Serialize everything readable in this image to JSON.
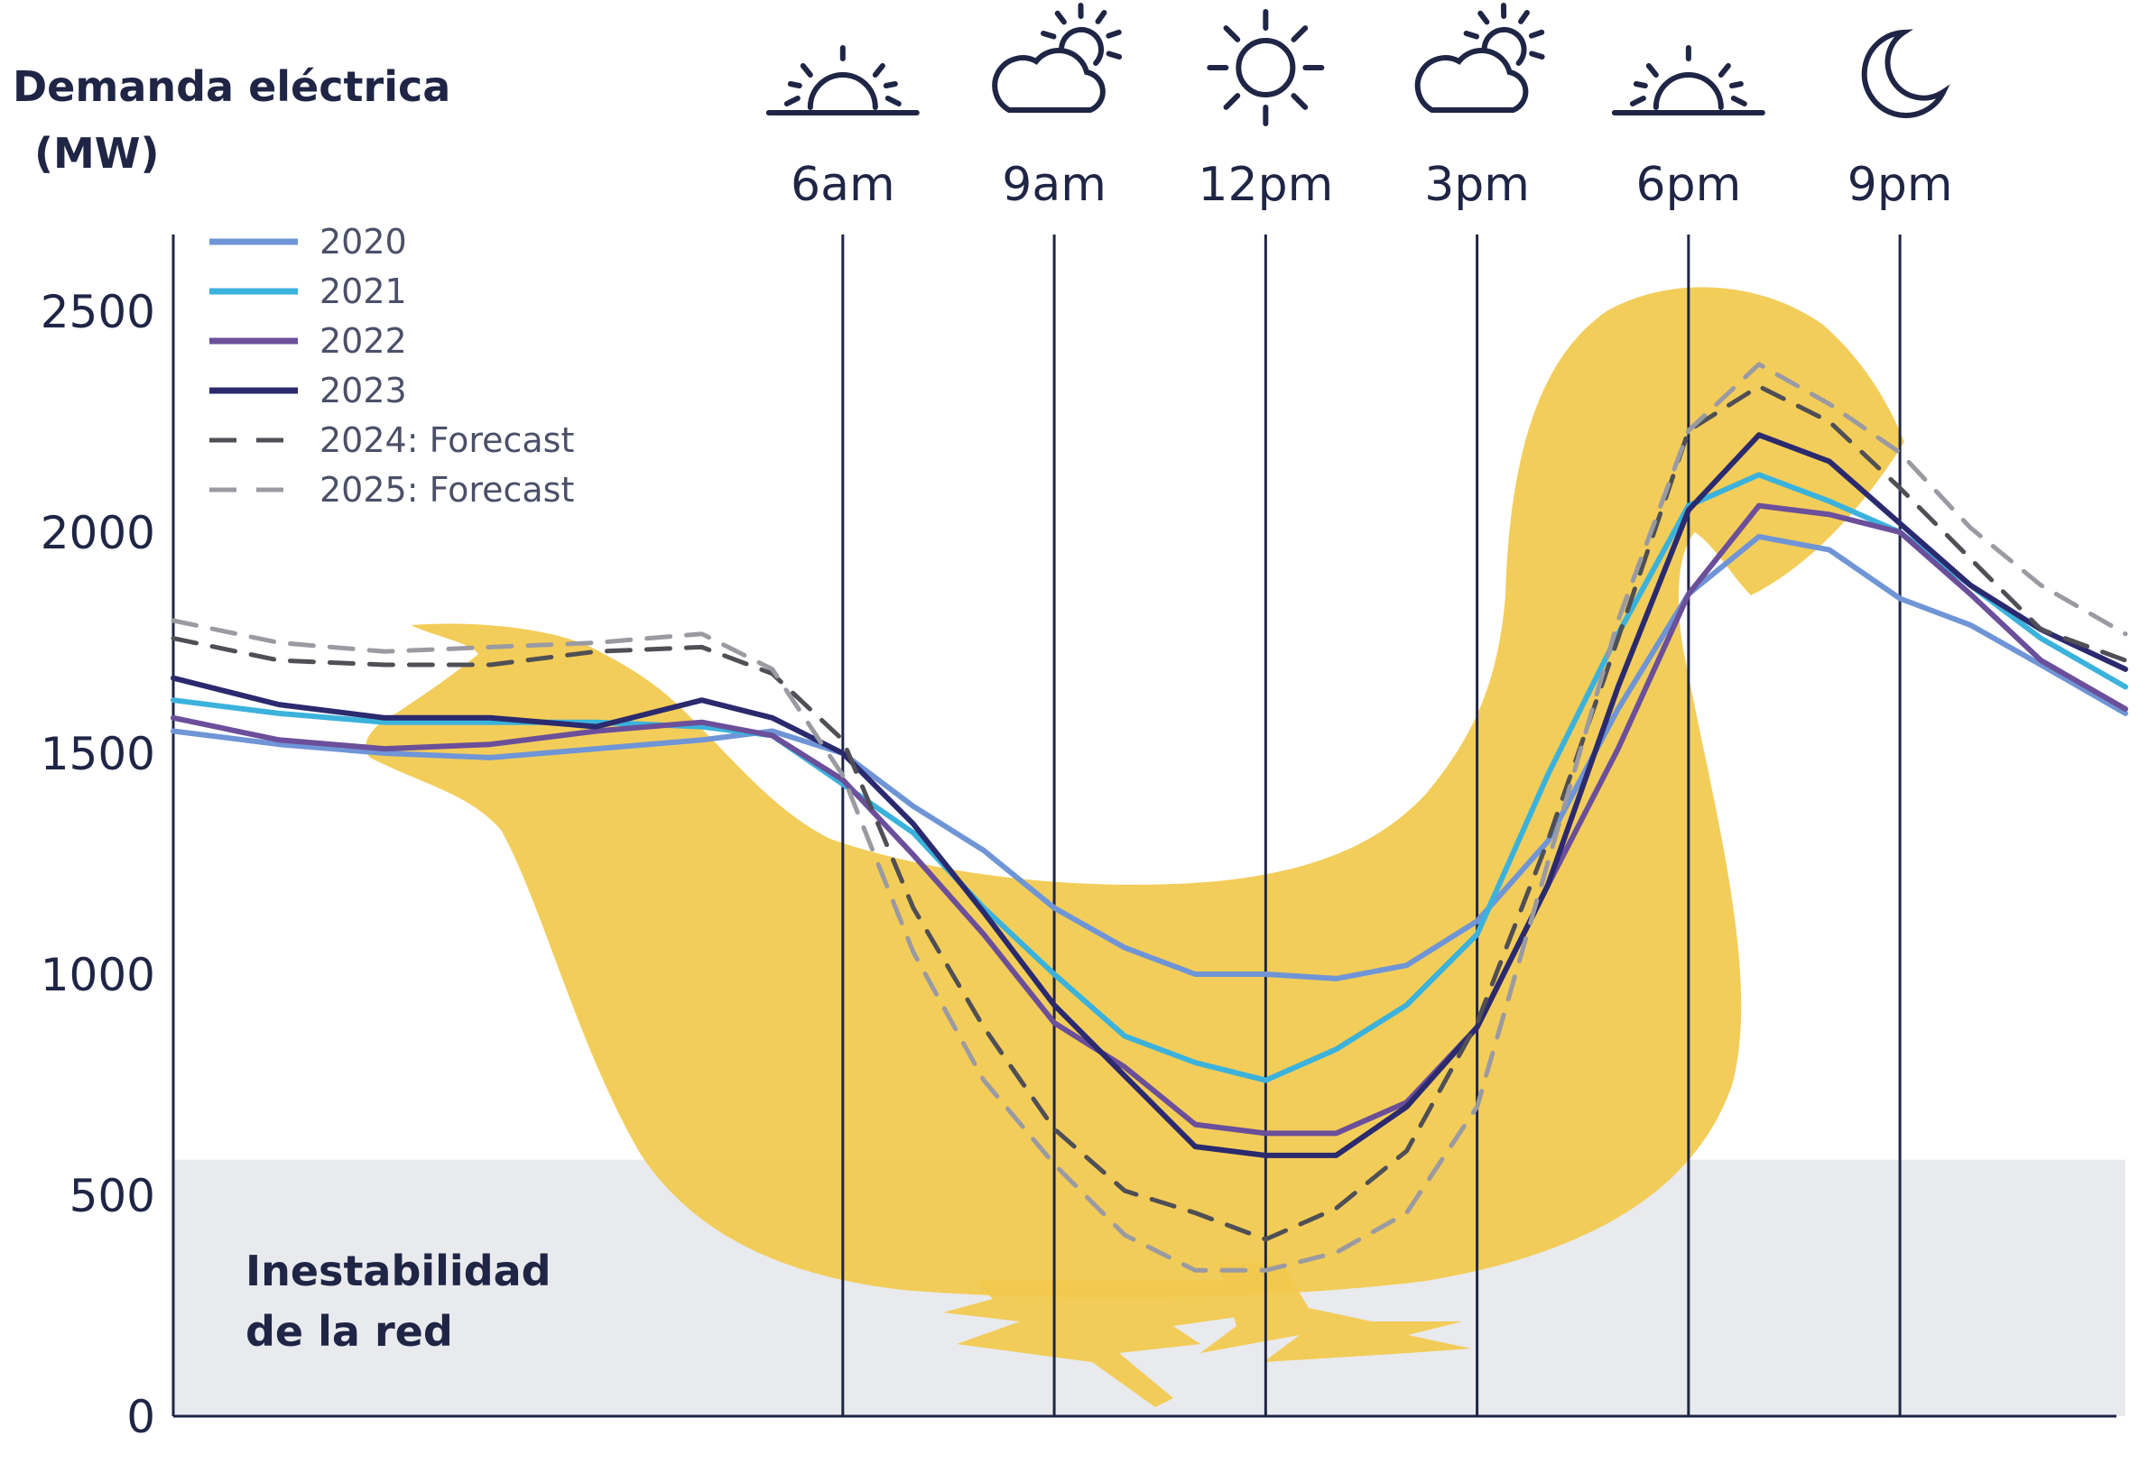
{
  "chart_data": {
    "type": "line",
    "ylabel_line1": "Demanda eléctrica",
    "ylabel_line2": "(MW)",
    "ylim": [
      0,
      2600
    ],
    "yticks": [
      0,
      500,
      1000,
      1500,
      2000,
      2500
    ],
    "xlim": [
      -3.5,
      24.2
    ],
    "time_markers": [
      {
        "hour": 6,
        "label": "6am",
        "icon": "sunrise-icon"
      },
      {
        "hour": 9,
        "label": "9am",
        "icon": "partly-cloudy-icon"
      },
      {
        "hour": 12,
        "label": "12pm",
        "icon": "sun-icon"
      },
      {
        "hour": 15,
        "label": "3pm",
        "icon": "partly-cloudy-icon"
      },
      {
        "hour": 18,
        "label": "6pm",
        "icon": "sunset-icon"
      },
      {
        "hour": 21,
        "label": "9pm",
        "icon": "moon-icon"
      }
    ],
    "zone": {
      "label_line1": "Inestabilidad",
      "label_line2": "de la red",
      "ymax": 580,
      "color": "#e5e6ea"
    },
    "duck_color": "#f2c94c",
    "legend_position": "top-left",
    "grid": false,
    "series": [
      {
        "name": "2020",
        "color": "#6f95d6",
        "dash": "solid",
        "x": [
          -3.5,
          -2,
          -0.5,
          1,
          2.5,
          4,
          5,
          6,
          7,
          8,
          9,
          10,
          11,
          12,
          13,
          14,
          15,
          16,
          17,
          18,
          19,
          20,
          21,
          22,
          23,
          24.2
        ],
        "y": [
          1550,
          1520,
          1500,
          1490,
          1510,
          1530,
          1550,
          1500,
          1380,
          1280,
          1150,
          1060,
          1000,
          1000,
          990,
          1020,
          1120,
          1300,
          1600,
          1860,
          1990,
          1960,
          1850,
          1790,
          1700,
          1590
        ]
      },
      {
        "name": "2021",
        "color": "#3bb2dc",
        "dash": "solid",
        "x": [
          -3.5,
          -2,
          -0.5,
          1,
          2.5,
          4,
          5,
          6,
          7,
          8,
          9,
          10,
          11,
          12,
          13,
          14,
          15,
          16,
          17,
          18,
          19,
          20,
          21,
          22,
          23,
          24.2
        ],
        "y": [
          1620,
          1590,
          1570,
          1570,
          1570,
          1560,
          1540,
          1430,
          1320,
          1150,
          1000,
          860,
          800,
          760,
          830,
          930,
          1090,
          1450,
          1770,
          2060,
          2130,
          2070,
          2000,
          1880,
          1760,
          1650
        ]
      },
      {
        "name": "2022",
        "color": "#6b4f9a",
        "dash": "solid",
        "x": [
          -3.5,
          -2,
          -0.5,
          1,
          2.5,
          4,
          5,
          6,
          7,
          8,
          9,
          10,
          11,
          12,
          13,
          14,
          15,
          16,
          17,
          18,
          19,
          20,
          21,
          22,
          23,
          24.2
        ],
        "y": [
          1580,
          1530,
          1510,
          1520,
          1550,
          1570,
          1540,
          1440,
          1270,
          1090,
          890,
          790,
          660,
          640,
          640,
          710,
          880,
          1200,
          1510,
          1860,
          2060,
          2040,
          2000,
          1860,
          1710,
          1600
        ]
      },
      {
        "name": "2023",
        "color": "#2b2a6e",
        "dash": "solid",
        "x": [
          -3.5,
          -2,
          -0.5,
          1,
          2.5,
          4,
          5,
          6,
          7,
          8,
          9,
          10,
          11,
          12,
          13,
          14,
          15,
          16,
          17,
          18,
          19,
          20,
          21,
          22,
          23,
          24.2
        ],
        "y": [
          1670,
          1610,
          1580,
          1580,
          1560,
          1620,
          1580,
          1500,
          1340,
          1140,
          930,
          770,
          610,
          590,
          590,
          700,
          880,
          1200,
          1650,
          2050,
          2220,
          2160,
          2020,
          1880,
          1780,
          1690
        ]
      },
      {
        "name": "2024: Forecast",
        "color": "#4f4f55",
        "dash": "dashed",
        "x": [
          -3.5,
          -2,
          -0.5,
          1,
          2.5,
          4,
          5,
          6,
          7,
          8,
          9,
          10,
          11,
          12,
          13,
          14,
          15,
          16,
          17,
          18,
          19,
          20,
          21,
          22,
          23,
          24.2
        ],
        "y": [
          1760,
          1710,
          1700,
          1700,
          1730,
          1740,
          1680,
          1530,
          1150,
          880,
          650,
          510,
          460,
          400,
          470,
          600,
          890,
          1300,
          1760,
          2230,
          2330,
          2250,
          2100,
          1940,
          1780,
          1710
        ]
      },
      {
        "name": "2025: Forecast",
        "color": "#9a9aa2",
        "dash": "dashed",
        "x": [
          -3.5,
          -2,
          -0.5,
          1,
          2.5,
          4,
          5,
          6,
          7,
          8,
          9,
          10,
          11,
          12,
          13,
          14,
          15,
          16,
          17,
          18,
          19,
          20,
          21,
          22,
          23,
          24.2
        ],
        "y": [
          1800,
          1750,
          1730,
          1740,
          1750,
          1770,
          1690,
          1450,
          1050,
          760,
          570,
          410,
          330,
          330,
          370,
          460,
          700,
          1250,
          1800,
          2230,
          2380,
          2290,
          2180,
          2010,
          1880,
          1770
        ]
      }
    ]
  }
}
